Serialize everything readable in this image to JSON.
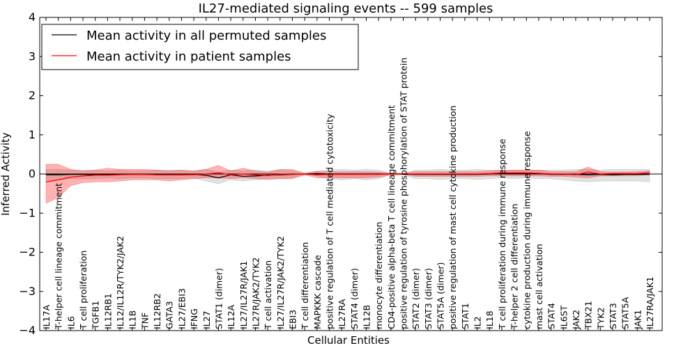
{
  "chart_data": {
    "type": "line",
    "title": "IL27-mediated signaling events -- 599 samples",
    "xlabel": "Cellular Entities",
    "ylabel": "Inferred Activity",
    "ylim": [
      -4,
      4
    ],
    "yticks": [
      -4,
      -3,
      -2,
      -1,
      0,
      1,
      2,
      3,
      4
    ],
    "ytick_labels": [
      "−4",
      "−3",
      "−2",
      "−1",
      "0",
      "1",
      "2",
      "3",
      "4"
    ],
    "legend_position": "top-left",
    "categories": [
      "IL17A",
      "T-helper cell lineage commitment",
      "IL6",
      "T cell proliferation",
      "TGFB1",
      "IL12RB1",
      "IL12/IL12R/TYK2/JAK2",
      "IL1B",
      "TNF",
      "IL12RB2",
      "GATA3",
      "IL27/EBI3",
      "IFNG",
      "IL27",
      "STAT1 (dimer)",
      "IL12A",
      "IL27/IL27R/JAK1",
      "IL27R/JAK2/TYK2",
      "T cell activation",
      "IL27/IL27R/JAK2/TYK2",
      "EBI3",
      "T cell differentiation",
      "MAPKKK cascade",
      "positive regulation of T cell mediated cytotoxicity",
      "IL27RA",
      "STAT4 (dimer)",
      "IL12B",
      "monocyte differentiation",
      "CD4-positive alpha-beta T cell lineage commitment",
      "positive regulation of tyrosine phosphorylation of STAT protein",
      "STAT2 (dimer)",
      "STAT3 (dimer)",
      "STAT5A (dimer)",
      "positive regulation of mast cell cytokine production",
      "STAT1",
      "IL2",
      "IL18",
      "T cell proliferation during immune response",
      "T-helper 2 cell differentiation",
      "cytokine production during immune response",
      "mast cell activation",
      "STAT4",
      "IL6ST",
      "JAK2",
      "TBX21",
      "TYK2",
      "STAT3",
      "STAT5A",
      "JAK1",
      "IL27RA/JAK1"
    ],
    "series": [
      {
        "name": "Mean activity in all permuted samples",
        "color": "#000000",
        "values": [
          -0.02,
          -0.02,
          -0.01,
          -0.01,
          -0.02,
          -0.01,
          -0.01,
          -0.01,
          -0.01,
          -0.02,
          -0.02,
          -0.02,
          -0.01,
          -0.03,
          -0.1,
          -0.02,
          -0.06,
          -0.05,
          -0.03,
          -0.02,
          -0.01,
          0.0,
          0.01,
          0.0,
          0.0,
          0.0,
          0.0,
          0.0,
          0.0,
          0.0,
          -0.01,
          -0.01,
          -0.01,
          -0.01,
          -0.01,
          -0.01,
          0.0,
          0.01,
          0.01,
          0.01,
          0.01,
          -0.01,
          -0.01,
          -0.01,
          -0.02,
          -0.01,
          -0.02,
          -0.01,
          -0.01,
          -0.01
        ],
        "band_low": [
          -0.15,
          -0.15,
          -0.12,
          -0.12,
          -0.12,
          -0.1,
          -0.12,
          -0.1,
          -0.1,
          -0.12,
          -0.12,
          -0.12,
          -0.1,
          -0.18,
          -0.25,
          -0.15,
          -0.18,
          -0.15,
          -0.12,
          -0.12,
          -0.1,
          -0.02,
          -0.05,
          -0.12,
          -0.15,
          -0.12,
          -0.15,
          -0.12,
          -0.02,
          -0.02,
          -0.12,
          -0.12,
          -0.14,
          -0.12,
          -0.12,
          -0.14,
          -0.12,
          -0.1,
          -0.12,
          -0.1,
          -0.12,
          -0.12,
          -0.15,
          -0.18,
          -0.2,
          -0.18,
          -0.18,
          -0.18,
          -0.18,
          -0.2
        ],
        "band_high": [
          0.12,
          0.12,
          0.1,
          0.1,
          0.1,
          0.08,
          0.1,
          0.08,
          0.08,
          0.1,
          0.1,
          0.1,
          0.08,
          0.12,
          0.05,
          0.1,
          0.08,
          0.1,
          0.08,
          0.1,
          0.08,
          0.02,
          0.06,
          0.1,
          0.12,
          0.1,
          0.12,
          0.1,
          0.02,
          0.02,
          0.1,
          0.1,
          0.12,
          0.1,
          0.1,
          0.12,
          0.1,
          0.1,
          0.1,
          0.1,
          0.1,
          0.1,
          0.1,
          0.12,
          0.12,
          0.1,
          0.12,
          0.12,
          0.12,
          0.12
        ]
      },
      {
        "name": "Mean activity in patient samples",
        "color": "#ff0000",
        "values": [
          -0.2,
          -0.15,
          -0.08,
          -0.05,
          -0.03,
          -0.03,
          -0.02,
          -0.01,
          -0.01,
          -0.02,
          -0.02,
          -0.02,
          -0.02,
          0.0,
          0.03,
          -0.02,
          0.0,
          -0.02,
          -0.04,
          0.0,
          -0.01,
          0.0,
          -0.02,
          -0.01,
          -0.01,
          -0.01,
          -0.01,
          -0.01,
          0.0,
          0.0,
          0.0,
          0.0,
          0.0,
          0.0,
          0.0,
          0.0,
          0.01,
          0.03,
          0.03,
          0.03,
          0.02,
          0.0,
          0.0,
          -0.02,
          0.05,
          0.0,
          0.01,
          0.01,
          0.01,
          0.03
        ],
        "band_low": [
          -0.75,
          -0.6,
          -0.3,
          -0.22,
          -0.2,
          -0.2,
          -0.18,
          -0.15,
          -0.15,
          -0.15,
          -0.18,
          -0.15,
          -0.12,
          -0.1,
          -0.1,
          -0.12,
          -0.1,
          -0.12,
          -0.14,
          -0.12,
          -0.12,
          -0.02,
          -0.1,
          -0.1,
          -0.1,
          -0.1,
          -0.1,
          -0.08,
          -0.02,
          -0.02,
          -0.06,
          -0.06,
          -0.06,
          -0.06,
          -0.06,
          -0.06,
          -0.05,
          -0.05,
          -0.05,
          -0.05,
          -0.05,
          -0.06,
          -0.06,
          -0.08,
          -0.1,
          -0.05,
          -0.05,
          -0.04,
          -0.04,
          -0.02
        ],
        "band_high": [
          0.25,
          0.25,
          0.12,
          0.08,
          0.1,
          0.15,
          0.12,
          0.12,
          0.12,
          0.1,
          0.08,
          0.1,
          0.08,
          0.12,
          0.22,
          0.08,
          0.15,
          0.08,
          0.05,
          0.12,
          0.12,
          0.02,
          0.08,
          0.06,
          0.06,
          0.06,
          0.06,
          0.05,
          0.02,
          0.02,
          0.06,
          0.06,
          0.06,
          0.06,
          0.06,
          0.06,
          0.08,
          0.1,
          0.1,
          0.1,
          0.1,
          0.06,
          0.06,
          0.06,
          0.18,
          0.06,
          0.05,
          0.05,
          0.06,
          0.08
        ]
      }
    ]
  }
}
